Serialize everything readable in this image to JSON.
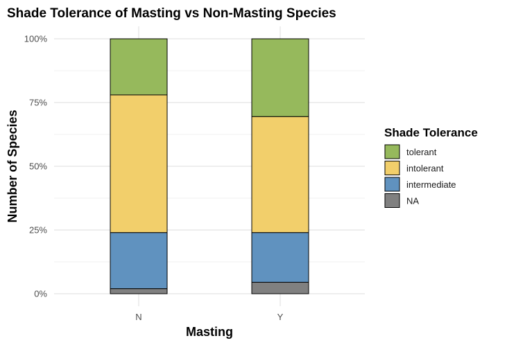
{
  "chart_data": {
    "type": "bar",
    "stacked": true,
    "percent": true,
    "title": "Shade Tolerance of Masting vs Non-Masting Species",
    "xlabel": "Masting",
    "ylabel": "Number of Species",
    "categories": [
      "N",
      "Y"
    ],
    "ylim": [
      0,
      1
    ],
    "yticks": [
      {
        "value": 0,
        "label": "0%"
      },
      {
        "value": 0.25,
        "label": "25%"
      },
      {
        "value": 0.5,
        "label": "50%"
      },
      {
        "value": 0.75,
        "label": "75%"
      },
      {
        "value": 1,
        "label": "100%"
      }
    ],
    "grid": true,
    "legend": {
      "title": "Shade Tolerance",
      "position": "right"
    },
    "series": [
      {
        "name": "NA",
        "color": "#808080",
        "values": [
          0.02,
          0.045
        ]
      },
      {
        "name": "intermediate",
        "color": "#6092bf",
        "values": [
          0.22,
          0.195
        ]
      },
      {
        "name": "intolerant",
        "color": "#f2cf6b",
        "values": [
          0.54,
          0.455
        ]
      },
      {
        "name": "tolerant",
        "color": "#96b95c",
        "values": [
          0.22,
          0.305
        ]
      }
    ],
    "legend_order": [
      "tolerant",
      "intolerant",
      "intermediate",
      "NA"
    ]
  }
}
